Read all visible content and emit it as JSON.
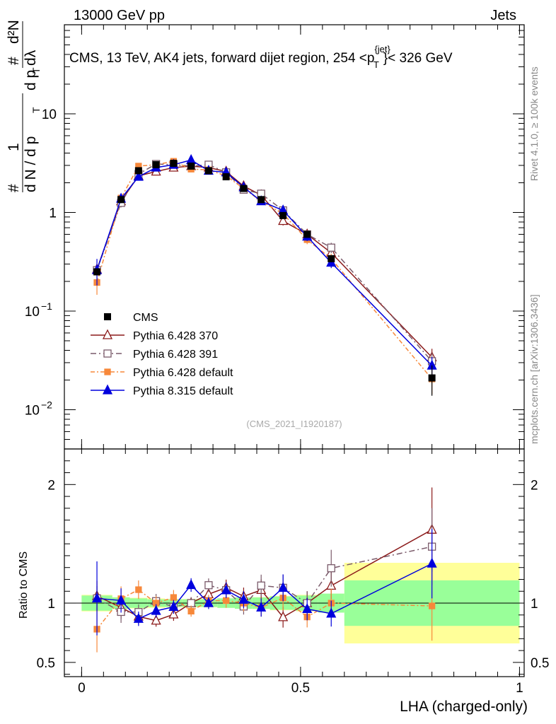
{
  "header": {
    "left": "13000 GeV pp",
    "right": "Jets"
  },
  "side_labels": {
    "rivet": "Rivet 4.1.0, ≥ 100k events",
    "mcplots": "mcplots.cern.ch [arXiv:1306.3436]"
  },
  "chart_data": {
    "type": "line",
    "title": "CMS, 13 TeV, AK4 jets, forward dijet region, 254 <p_T^{jet}> < 326 GeV",
    "title_text": {
      "prefix": "CMS, 13 TeV, AK4 jets, forward dijet region, 254 <p",
      "sup": "{jet}",
      "sub": "T",
      "suffix": "}< 326 GeV"
    },
    "analysis_label": "(CMS_2021_I1920187)",
    "xlabel": "LHA (charged-only)",
    "ylabel": "1/dN/dp_T d²N/dp_T dλ",
    "ylabel_text": {
      "hash1": "#",
      "one": "1",
      "dN_dpT": "d N / d p",
      "hash2": "#",
      "d2N": "d²N",
      "dpT_dl": "d p  dλ",
      "sub_T": "T"
    },
    "ratio_ylabel": "Ratio to CMS",
    "x_range": [
      -0.02,
      1.03
    ],
    "y_range_log": [
      0.004,
      80
    ],
    "ratio_range": [
      0.38,
      2.3
    ],
    "x_ticks": [
      {
        "value": 0,
        "label": "0"
      },
      {
        "value": 0.5,
        "label": "0.5"
      },
      {
        "value": 1,
        "label": "1"
      }
    ],
    "y_ticks": [
      {
        "value": 10,
        "label": "10"
      },
      {
        "value": 1,
        "label": "1"
      },
      {
        "value": 0.1,
        "label": "10",
        "exp": "−1"
      },
      {
        "value": 0.01,
        "label": "10",
        "exp": "−2"
      }
    ],
    "ratio_ticks": [
      {
        "value": 2,
        "label": "2"
      },
      {
        "value": 1,
        "label": "1"
      },
      {
        "value": 0.5,
        "label": "0.5"
      }
    ],
    "bins": [
      [
        0.0,
        0.07
      ],
      [
        0.07,
        0.11
      ],
      [
        0.11,
        0.15
      ],
      [
        0.15,
        0.19
      ],
      [
        0.19,
        0.23
      ],
      [
        0.23,
        0.27
      ],
      [
        0.27,
        0.31
      ],
      [
        0.31,
        0.35
      ],
      [
        0.35,
        0.39
      ],
      [
        0.39,
        0.43
      ],
      [
        0.43,
        0.49
      ],
      [
        0.49,
        0.54
      ],
      [
        0.54,
        0.6
      ],
      [
        0.6,
        1.0
      ]
    ],
    "x": [
      0.035,
      0.09,
      0.13,
      0.17,
      0.21,
      0.25,
      0.29,
      0.33,
      0.37,
      0.41,
      0.46,
      0.515,
      0.57,
      0.8
    ],
    "cms": {
      "name": "CMS",
      "values": [
        0.25,
        1.35,
        2.65,
        3.05,
        3.15,
        2.95,
        2.65,
        2.3,
        1.75,
        1.35,
        0.93,
        0.6,
        0.34,
        0.021
      ],
      "stat_frac": [
        0.04,
        0.03,
        0.025,
        0.02,
        0.02,
        0.02,
        0.02,
        0.025,
        0.03,
        0.03,
        0.035,
        0.04,
        0.05,
        0.12
      ],
      "total_frac": [
        0.07,
        0.05,
        0.045,
        0.04,
        0.035,
        0.035,
        0.035,
        0.04,
        0.045,
        0.05,
        0.06,
        0.07,
        0.08,
        0.34
      ]
    },
    "series": [
      {
        "name": "Pythia 6.428 370",
        "color": "#8b1a1a",
        "marker": "triangle-open",
        "dash": "",
        "values": [
          0.265,
          1.3,
          2.35,
          2.6,
          2.85,
          2.95,
          2.85,
          2.6,
          1.85,
          1.5,
          0.82,
          0.6,
          0.39,
          0.034
        ],
        "err_frac": [
          0.12,
          0.1,
          0.07,
          0.06,
          0.06,
          0.05,
          0.05,
          0.06,
          0.07,
          0.08,
          0.1,
          0.1,
          0.1,
          0.22
        ]
      },
      {
        "name": "Pythia 6.428 391",
        "color": "#7a5a6a",
        "marker": "square-open",
        "dash": "8,4,2,4",
        "values": [
          0.26,
          1.25,
          2.45,
          3.1,
          3.05,
          2.95,
          3.05,
          2.55,
          1.7,
          1.55,
          1.05,
          0.6,
          0.44,
          0.031
        ],
        "err_frac": [
          0.1,
          0.1,
          0.07,
          0.06,
          0.06,
          0.05,
          0.05,
          0.06,
          0.07,
          0.08,
          0.1,
          0.1,
          0.12,
          0.22
        ]
      },
      {
        "name": "Pythia 6.428 default",
        "color": "#f7883a",
        "marker": "square-filled",
        "dash": "6,3,2,3",
        "values": [
          0.195,
          1.4,
          2.95,
          3.05,
          3.3,
          2.75,
          2.7,
          2.35,
          1.75,
          1.3,
          0.97,
          0.53,
          0.34,
          0.0205
        ],
        "err_frac": [
          0.25,
          0.1,
          0.07,
          0.06,
          0.06,
          0.05,
          0.05,
          0.06,
          0.07,
          0.08,
          0.1,
          0.1,
          0.12,
          0.3
        ]
      },
      {
        "name": "Pythia 8.315 default",
        "color": "#0000dd",
        "marker": "triangle-filled",
        "dash": "",
        "values": [
          0.26,
          1.38,
          2.3,
          2.85,
          3.05,
          3.4,
          2.65,
          2.55,
          1.8,
          1.3,
          1.05,
          0.57,
          0.31,
          0.028
        ],
        "err_frac": [
          0.3,
          0.1,
          0.07,
          0.06,
          0.06,
          0.05,
          0.05,
          0.06,
          0.07,
          0.08,
          0.1,
          0.1,
          0.12,
          0.22
        ]
      }
    ]
  }
}
